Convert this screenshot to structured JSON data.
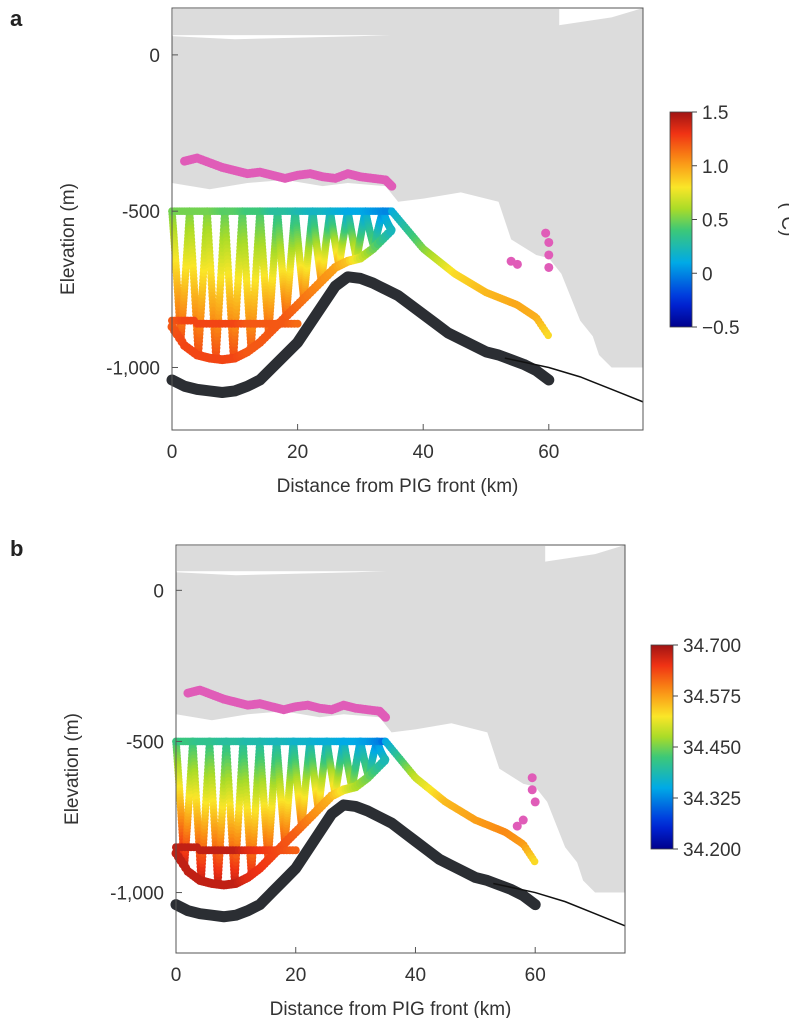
{
  "chart_data": [
    {
      "panel": "a",
      "type": "scatter",
      "xlabel": "Distance from PIG front (km)",
      "ylabel": "Elevation (m)",
      "xlim": [
        0,
        75
      ],
      "ylim": [
        -1200,
        150
      ],
      "xticks": [
        0,
        20,
        40,
        60
      ],
      "xtick_labels": [
        "0",
        "20",
        "40",
        "60"
      ],
      "yticks": [
        0,
        -500,
        -1000
      ],
      "ytick_labels": [
        "0",
        "-500",
        "-1,000"
      ],
      "colorbar": {
        "label": "(°C)",
        "range": [
          -0.5,
          1.5
        ],
        "ticks": [
          1.5,
          1.0,
          0.5,
          0,
          -0.5
        ],
        "tick_labels": [
          "1.5",
          "1.0",
          "0.5",
          "0",
          "−0.5"
        ]
      },
      "series": [
        {
          "role": "ice-shelf-base-profile",
          "color": "#dcdcdc",
          "x": [
            0,
            6,
            12,
            18,
            24,
            28,
            34,
            36,
            40,
            46,
            52,
            54,
            58,
            60,
            62,
            65,
            67,
            68,
            70,
            75
          ],
          "y": [
            -410,
            -430,
            -410,
            -400,
            -420,
            -410,
            -420,
            -470,
            -460,
            -440,
            -470,
            -590,
            -640,
            -650,
            -700,
            -850,
            -900,
            -960,
            -1000,
            -1000
          ]
        },
        {
          "role": "ice-surface-top",
          "color": "#dcdcdc",
          "x": [
            0,
            10,
            30,
            50,
            60,
            70,
            75
          ],
          "y": [
            60,
            50,
            60,
            75,
            90,
            120,
            150
          ]
        },
        {
          "role": "magenta-profile-upper",
          "color": "#e05cb8",
          "x": [
            2,
            4,
            6,
            8,
            10,
            12,
            14,
            16,
            18,
            20,
            22,
            24,
            26,
            28,
            30,
            32,
            34,
            35
          ],
          "y": [
            -340,
            -330,
            -345,
            -360,
            -370,
            -380,
            -375,
            -385,
            -395,
            -385,
            -380,
            -390,
            -395,
            -380,
            -390,
            -395,
            -400,
            -420
          ]
        },
        {
          "role": "magenta-profile-far",
          "color": "#e05cb8",
          "x": [
            54,
            55,
            59.5,
            60,
            60,
            60
          ],
          "y": [
            -660,
            -670,
            -570,
            -600,
            -640,
            -680
          ]
        },
        {
          "role": "black-seabed-profile",
          "color": "#2b2e33",
          "x": [
            0,
            2,
            4,
            6,
            8,
            10,
            12,
            14,
            16,
            18,
            20,
            22,
            24,
            26,
            28,
            30,
            32,
            34,
            36,
            38,
            40,
            42,
            44,
            46,
            48,
            50,
            52,
            54,
            56,
            58,
            60
          ],
          "y": [
            -1040,
            -1060,
            -1070,
            -1075,
            -1080,
            -1075,
            -1060,
            -1040,
            -1000,
            -960,
            -920,
            -860,
            -800,
            -740,
            -710,
            -715,
            -730,
            -750,
            -770,
            -800,
            -830,
            -860,
            -890,
            -910,
            -930,
            -950,
            -960,
            -975,
            -990,
            -1010,
            -1040
          ]
        },
        {
          "role": "bathymetry-line",
          "color": "#111111",
          "x": [
            53,
            60,
            65,
            70,
            75
          ],
          "y": [
            -970,
            -1000,
            -1030,
            -1070,
            -1110
          ]
        },
        {
          "role": "temperature-ctd-section",
          "color_by": "temperature",
          "x": [
            0,
            2,
            4,
            6,
            8,
            10,
            12,
            14,
            16,
            18,
            20,
            22,
            24,
            26,
            28,
            30,
            32,
            34,
            35,
            40,
            45,
            50,
            55,
            58,
            60
          ],
          "y_top": -500,
          "y_bottom": [
            -870,
            -930,
            -960,
            -970,
            -975,
            -970,
            -950,
            -920,
            -880,
            -840,
            -800,
            -760,
            -720,
            -680,
            -660,
            -650,
            -620,
            -580,
            -560,
            -680,
            -760,
            -820,
            -860,
            -900,
            -960
          ],
          "value_top": [
            0.5,
            0.5,
            0.5,
            0.5,
            0.45,
            0.45,
            0.4,
            0.4,
            0.3,
            0.3,
            0.25,
            0.2,
            0.2,
            0.15,
            0.1,
            0.1,
            0.05,
            0.0,
            0.0,
            0.4,
            0.8,
            0.9,
            0.95,
            0.9,
            0.5
          ],
          "value_bottom": [
            1.2,
            1.25,
            1.25,
            1.25,
            1.25,
            1.25,
            1.2,
            1.2,
            1.2,
            1.2,
            1.15,
            1.1,
            1.05,
            1.0,
            0.9,
            0.7,
            0.5,
            0.3,
            0.2,
            0.6,
            0.85,
            0.95,
            1.0,
            1.0,
            1.05
          ]
        }
      ]
    },
    {
      "panel": "b",
      "type": "scatter",
      "xlabel": "Distance from PIG front (km)",
      "ylabel": "Elevation (m)",
      "xlim": [
        0,
        75
      ],
      "ylim": [
        -1200,
        150
      ],
      "xticks": [
        0,
        20,
        40,
        60
      ],
      "xtick_labels": [
        "0",
        "20",
        "40",
        "60"
      ],
      "yticks": [
        0,
        -500,
        -1000
      ],
      "ytick_labels": [
        "0",
        "-500",
        "-1,000"
      ],
      "colorbar": {
        "label": "",
        "range": [
          34.2,
          34.7
        ],
        "ticks": [
          34.7,
          34.575,
          34.45,
          34.325,
          34.2
        ],
        "tick_labels": [
          "34.700",
          "34.575",
          "34.450",
          "34.325",
          "34.200"
        ]
      },
      "series": [
        {
          "role": "ice-shelf-base-profile",
          "color": "#dcdcdc",
          "x": [
            0,
            6,
            12,
            18,
            24,
            28,
            34,
            36,
            40,
            46,
            52,
            54,
            58,
            60,
            62,
            65,
            67,
            68,
            70,
            75
          ],
          "y": [
            -410,
            -430,
            -410,
            -400,
            -420,
            -410,
            -420,
            -470,
            -460,
            -440,
            -470,
            -590,
            -640,
            -650,
            -700,
            -850,
            -900,
            -960,
            -1000,
            -1000
          ]
        },
        {
          "role": "ice-surface-top",
          "color": "#dcdcdc",
          "x": [
            0,
            10,
            30,
            50,
            60,
            70,
            75
          ],
          "y": [
            60,
            50,
            60,
            75,
            90,
            120,
            150
          ]
        },
        {
          "role": "magenta-profile-upper",
          "color": "#e05cb8",
          "x": [
            2,
            4,
            6,
            8,
            10,
            12,
            14,
            16,
            18,
            20,
            22,
            24,
            26,
            28,
            30,
            32,
            34,
            35
          ],
          "y": [
            -340,
            -330,
            -345,
            -360,
            -370,
            -380,
            -375,
            -385,
            -395,
            -385,
            -380,
            -390,
            -395,
            -380,
            -390,
            -395,
            -400,
            -420
          ]
        },
        {
          "role": "magenta-profile-far",
          "color": "#e05cb8",
          "x": [
            57,
            58,
            59.5,
            59.5,
            60
          ],
          "y": [
            -780,
            -760,
            -660,
            -620,
            -700
          ]
        },
        {
          "role": "black-seabed-profile",
          "color": "#2b2e33",
          "x": [
            0,
            2,
            4,
            6,
            8,
            10,
            12,
            14,
            16,
            18,
            20,
            22,
            24,
            26,
            28,
            30,
            32,
            34,
            36,
            38,
            40,
            42,
            44,
            46,
            48,
            50,
            52,
            54,
            56,
            58,
            60
          ],
          "y": [
            -1040,
            -1060,
            -1070,
            -1075,
            -1080,
            -1075,
            -1060,
            -1040,
            -1000,
            -960,
            -920,
            -860,
            -800,
            -740,
            -710,
            -715,
            -730,
            -750,
            -770,
            -800,
            -830,
            -860,
            -890,
            -910,
            -930,
            -950,
            -960,
            -975,
            -990,
            -1010,
            -1040
          ]
        },
        {
          "role": "bathymetry-line",
          "color": "#111111",
          "x": [
            53,
            60,
            65,
            70,
            75
          ],
          "y": [
            -970,
            -1000,
            -1030,
            -1070,
            -1110
          ]
        },
        {
          "role": "salinity-ctd-section",
          "color_by": "salinity",
          "x": [
            0,
            2,
            4,
            6,
            8,
            10,
            12,
            14,
            16,
            18,
            20,
            22,
            24,
            26,
            28,
            30,
            32,
            34,
            35,
            40,
            45,
            50,
            55,
            58,
            60
          ],
          "y_top": -500,
          "y_bottom": [
            -870,
            -930,
            -960,
            -970,
            -975,
            -970,
            -950,
            -920,
            -880,
            -840,
            -800,
            -760,
            -720,
            -680,
            -660,
            -650,
            -620,
            -580,
            -560,
            -680,
            -760,
            -820,
            -860,
            -900,
            -960
          ],
          "value_top": [
            34.42,
            34.42,
            34.41,
            34.41,
            34.4,
            34.4,
            34.39,
            34.39,
            34.38,
            34.38,
            34.37,
            34.37,
            34.36,
            34.36,
            34.35,
            34.35,
            34.34,
            34.32,
            34.3,
            34.48,
            34.55,
            34.57,
            34.58,
            34.55,
            34.4
          ],
          "value_bottom": [
            34.68,
            34.68,
            34.68,
            34.68,
            34.68,
            34.68,
            34.66,
            34.65,
            34.64,
            34.63,
            34.62,
            34.6,
            34.58,
            34.56,
            34.52,
            34.48,
            34.45,
            34.4,
            34.38,
            34.5,
            34.56,
            34.58,
            34.6,
            34.6,
            34.62
          ]
        }
      ]
    }
  ],
  "panels": {
    "a": {
      "letter": "a"
    },
    "b": {
      "letter": "b"
    }
  }
}
